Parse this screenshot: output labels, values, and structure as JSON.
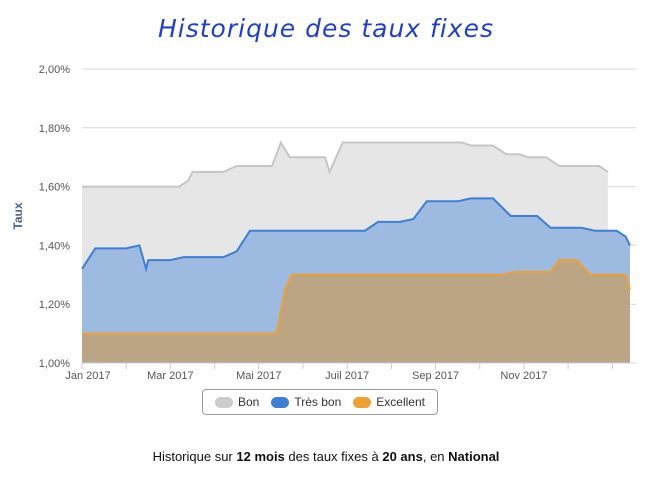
{
  "chart_data": {
    "type": "area",
    "title": "Historique des taux fixes",
    "ylabel": "Taux",
    "xlabel": "",
    "ylim": [
      1.0,
      2.0
    ],
    "y_ticks": [
      "1,00%",
      "1,20%",
      "1,40%",
      "1,60%",
      "1,80%",
      "2,00%"
    ],
    "x_ticks": [
      "Jan 2017",
      "Mar 2017",
      "Mai 2017",
      "Juil 2017",
      "Sep 2017",
      "Nov 2017"
    ],
    "x_unit": "months since Jan 2017",
    "grid": true,
    "legend_position": "bottom",
    "series": [
      {
        "name": "Bon",
        "color": "#cccccc",
        "points": [
          [
            0,
            1.6
          ],
          [
            1.3,
            1.6
          ],
          [
            1.6,
            1.6
          ],
          [
            1.9,
            1.6
          ],
          [
            2.2,
            1.6
          ],
          [
            2.4,
            1.62
          ],
          [
            2.5,
            1.65
          ],
          [
            2.8,
            1.65
          ],
          [
            3.2,
            1.65
          ],
          [
            3.5,
            1.67
          ],
          [
            3.9,
            1.67
          ],
          [
            4.3,
            1.67
          ],
          [
            4.5,
            1.75
          ],
          [
            4.7,
            1.7
          ],
          [
            5.0,
            1.7
          ],
          [
            5.3,
            1.7
          ],
          [
            5.5,
            1.7
          ],
          [
            5.6,
            1.65
          ],
          [
            5.9,
            1.75
          ],
          [
            6.5,
            1.75
          ],
          [
            7.5,
            1.75
          ],
          [
            8.4,
            1.75
          ],
          [
            8.6,
            1.75
          ],
          [
            8.8,
            1.74
          ],
          [
            9.3,
            1.74
          ],
          [
            9.6,
            1.71
          ],
          [
            9.9,
            1.71
          ],
          [
            10.1,
            1.7
          ],
          [
            10.5,
            1.7
          ],
          [
            10.8,
            1.67
          ],
          [
            11.0,
            1.67
          ],
          [
            11.5,
            1.67
          ],
          [
            11.7,
            1.67
          ],
          [
            11.9,
            1.65
          ]
        ]
      },
      {
        "name": "Très bon",
        "color": "#3d7fd6",
        "points": [
          [
            0,
            1.32
          ],
          [
            0.3,
            1.39
          ],
          [
            0.6,
            1.39
          ],
          [
            1.0,
            1.39
          ],
          [
            1.3,
            1.4
          ],
          [
            1.45,
            1.32
          ],
          [
            1.5,
            1.35
          ],
          [
            2.0,
            1.35
          ],
          [
            2.3,
            1.36
          ],
          [
            2.6,
            1.36
          ],
          [
            2.9,
            1.36
          ],
          [
            3.2,
            1.36
          ],
          [
            3.5,
            1.38
          ],
          [
            3.8,
            1.45
          ],
          [
            4.4,
            1.45
          ],
          [
            5.0,
            1.45
          ],
          [
            6.0,
            1.45
          ],
          [
            6.4,
            1.45
          ],
          [
            6.7,
            1.48
          ],
          [
            7.2,
            1.48
          ],
          [
            7.5,
            1.49
          ],
          [
            7.8,
            1.55
          ],
          [
            8.5,
            1.55
          ],
          [
            8.8,
            1.56
          ],
          [
            9.3,
            1.56
          ],
          [
            9.7,
            1.5
          ],
          [
            10.0,
            1.5
          ],
          [
            10.3,
            1.5
          ],
          [
            10.6,
            1.46
          ],
          [
            11.3,
            1.46
          ],
          [
            11.6,
            1.45
          ],
          [
            12.1,
            1.45
          ],
          [
            12.3,
            1.43
          ],
          [
            12.6,
            1.4
          ],
          [
            13.0,
            1.4
          ]
        ]
      },
      {
        "name": "Excellent",
        "color": "#f0a033",
        "points": [
          [
            0,
            1.1
          ],
          [
            1.5,
            1.1
          ],
          [
            2.5,
            1.1
          ],
          [
            4.0,
            1.1
          ],
          [
            4.4,
            1.1
          ],
          [
            4.6,
            1.25
          ],
          [
            4.75,
            1.3
          ],
          [
            6.0,
            1.3
          ],
          [
            7.5,
            1.3
          ],
          [
            9.5,
            1.3
          ],
          [
            9.8,
            1.31
          ],
          [
            10.3,
            1.31
          ],
          [
            10.6,
            1.31
          ],
          [
            10.8,
            1.35
          ],
          [
            11.2,
            1.35
          ],
          [
            11.5,
            1.3
          ],
          [
            12.0,
            1.3
          ],
          [
            12.3,
            1.3
          ],
          [
            12.5,
            1.25
          ],
          [
            13.0,
            1.25
          ]
        ]
      }
    ]
  },
  "caption": {
    "prefix": "Historique sur ",
    "months": "12 mois",
    "middle": " des taux fixes à ",
    "years": "20 ans",
    "middle2": ", en ",
    "region": "National"
  }
}
